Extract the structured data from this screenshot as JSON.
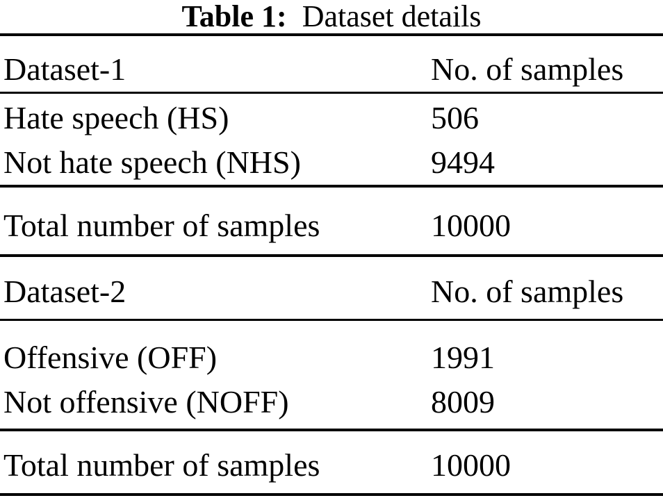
{
  "caption": {
    "label": "Table 1:",
    "title": "Dataset details"
  },
  "table": {
    "sections": [
      {
        "header": {
          "name": "Dataset-1",
          "samples_label": "No. of samples"
        },
        "rows": [
          {
            "label": "Hate speech (HS)",
            "value": "506"
          },
          {
            "label": "Not hate speech (NHS)",
            "value": "9494"
          }
        ],
        "total": {
          "label": "Total number of samples",
          "value": "10000"
        }
      },
      {
        "header": {
          "name": "Dataset-2",
          "samples_label": "No. of samples"
        },
        "rows": [
          {
            "label": "Offensive (OFF)",
            "value": "1991"
          },
          {
            "label": "Not offensive (NOFF)",
            "value": "8009"
          }
        ],
        "total": {
          "label": "Total number of samples",
          "value": "10000"
        }
      }
    ]
  },
  "colors": {
    "text": "#000000",
    "background": "#ffffff",
    "rule": "#000000"
  },
  "chart_data": {
    "type": "table",
    "title": "Table 1: Dataset details",
    "tables": [
      {
        "columns": [
          "Dataset-1",
          "No. of samples"
        ],
        "rows": [
          [
            "Hate speech (HS)",
            506
          ],
          [
            "Not hate speech (NHS)",
            9494
          ],
          [
            "Total number of samples",
            10000
          ]
        ]
      },
      {
        "columns": [
          "Dataset-2",
          "No. of samples"
        ],
        "rows": [
          [
            "Offensive (OFF)",
            1991
          ],
          [
            "Not offensive (NOFF)",
            8009
          ],
          [
            "Total number of samples",
            10000
          ]
        ]
      }
    ]
  }
}
